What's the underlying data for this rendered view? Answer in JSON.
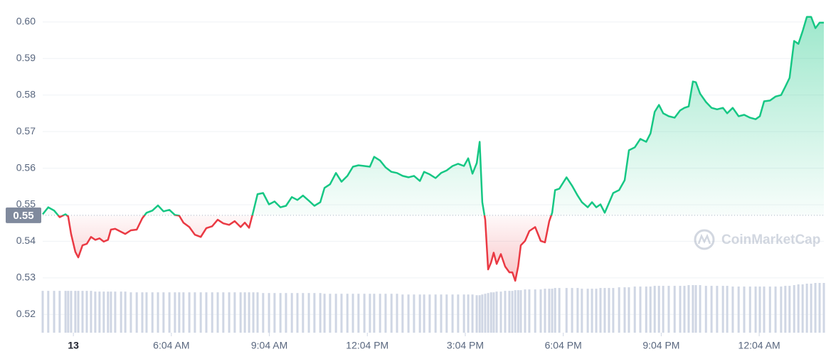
{
  "chart_data": {
    "type": "line",
    "watermark": "CoinMarketCap",
    "x": [
      2.06,
      2.23,
      2.41,
      2.58,
      2.76,
      2.84,
      2.93,
      3.06,
      3.15,
      3.28,
      3.41,
      3.54,
      3.67,
      3.8,
      3.93,
      4.06,
      4.15,
      4.28,
      4.46,
      4.59,
      4.76,
      4.94,
      5.11,
      5.24,
      5.42,
      5.59,
      5.76,
      5.94,
      6.11,
      6.24,
      6.37,
      6.55,
      6.72,
      6.9,
      7.07,
      7.25,
      7.42,
      7.59,
      7.77,
      7.94,
      8.12,
      8.25,
      8.38,
      8.51,
      8.64,
      8.81,
      8.99,
      9.16,
      9.34,
      9.51,
      9.69,
      9.86,
      10.03,
      10.21,
      10.38,
      10.56,
      10.69,
      10.86,
      11.04,
      11.21,
      11.39,
      11.56,
      11.73,
      11.91,
      12.08,
      12.21,
      12.39,
      12.56,
      12.74,
      12.91,
      13.08,
      13.26,
      13.43,
      13.61,
      13.74,
      13.91,
      14.09,
      14.26,
      14.43,
      14.61,
      14.78,
      14.96,
      15.09,
      15.22,
      15.35,
      15.44,
      15.52,
      15.61,
      15.7,
      15.79,
      15.87,
      15.96,
      16.09,
      16.22,
      16.35,
      16.44,
      16.53,
      16.62,
      16.7,
      16.83,
      16.96,
      17.14,
      17.31,
      17.44,
      17.57,
      17.66,
      17.75,
      17.88,
      18.1,
      18.27,
      18.44,
      18.57,
      18.75,
      18.88,
      19.01,
      19.14,
      19.27,
      19.4,
      19.53,
      19.71,
      19.88,
      20.01,
      20.19,
      20.36,
      20.54,
      20.67,
      20.8,
      20.93,
      21.06,
      21.23,
      21.41,
      21.58,
      21.71,
      21.84,
      21.97,
      22.06,
      22.19,
      22.37,
      22.54,
      22.71,
      22.89,
      23.02,
      23.19,
      23.37,
      23.54,
      23.72,
      23.89,
      24.02,
      24.15,
      24.33,
      24.5,
      24.67,
      24.8,
      24.93,
      25.07,
      25.2,
      25.33,
      25.46,
      25.59,
      25.72,
      25.85,
      25.98
    ],
    "series": [
      {
        "values": [
          0.5474,
          0.5493,
          0.5484,
          0.5466,
          0.5474,
          0.5468,
          0.542,
          0.5371,
          0.5356,
          0.5389,
          0.5393,
          0.5412,
          0.5404,
          0.5408,
          0.5399,
          0.5404,
          0.5432,
          0.5434,
          0.5426,
          0.542,
          0.543,
          0.5432,
          0.5463,
          0.5478,
          0.5484,
          0.5498,
          0.5482,
          0.5486,
          0.5472,
          0.547,
          0.5451,
          0.5439,
          0.5418,
          0.5412,
          0.5436,
          0.5441,
          0.5459,
          0.5449,
          0.5445,
          0.5455,
          0.5439,
          0.5451,
          0.5437,
          0.5482,
          0.5529,
          0.5532,
          0.5501,
          0.5509,
          0.5493,
          0.5497,
          0.5521,
          0.5513,
          0.5525,
          0.5511,
          0.5497,
          0.5507,
          0.5546,
          0.5556,
          0.5587,
          0.5563,
          0.5579,
          0.5604,
          0.5608,
          0.5606,
          0.5604,
          0.5631,
          0.5621,
          0.5602,
          0.559,
          0.5587,
          0.5579,
          0.5575,
          0.5579,
          0.5565,
          0.559,
          0.5583,
          0.5573,
          0.5587,
          0.5594,
          0.5606,
          0.5612,
          0.5606,
          0.5627,
          0.5585,
          0.5614,
          0.5672,
          0.5507,
          0.5459,
          0.5323,
          0.5342,
          0.5369,
          0.5338,
          0.5365,
          0.5331,
          0.5315,
          0.5315,
          0.5292,
          0.5331,
          0.5389,
          0.5401,
          0.5428,
          0.5439,
          0.5401,
          0.5397,
          0.5455,
          0.5478,
          0.554,
          0.5544,
          0.5575,
          0.5552,
          0.5525,
          0.5507,
          0.5493,
          0.5507,
          0.5493,
          0.5501,
          0.5478,
          0.5505,
          0.5532,
          0.554,
          0.5567,
          0.5649,
          0.5657,
          0.568,
          0.5672,
          0.5695,
          0.5754,
          0.5773,
          0.575,
          0.5742,
          0.5738,
          0.5758,
          0.5765,
          0.5769,
          0.5837,
          0.5835,
          0.5804,
          0.5781,
          0.5765,
          0.5761,
          0.5765,
          0.575,
          0.5765,
          0.5742,
          0.5746,
          0.5738,
          0.5734,
          0.5742,
          0.5783,
          0.5785,
          0.5796,
          0.58,
          0.5823,
          0.5847,
          0.5948,
          0.594,
          0.5975,
          0.6014,
          0.6014,
          0.5983,
          0.5998,
          0.5998
        ],
        "color_up": "#16c784",
        "color_down": "#ea3943"
      }
    ],
    "volume": {
      "color": "#cfd6e4",
      "values": [
        58,
        58,
        58,
        58,
        58,
        58,
        58,
        58,
        58,
        58,
        58,
        58,
        57,
        57,
        57,
        57,
        57,
        57,
        57,
        57,
        56,
        56,
        56,
        56,
        56,
        56,
        56,
        56,
        56,
        56,
        56,
        56,
        56,
        56,
        56,
        56,
        56,
        56,
        56,
        56,
        56,
        56,
        56,
        56,
        56,
        55,
        55,
        55,
        55,
        55,
        55,
        55,
        55,
        55,
        55,
        55,
        54,
        54,
        54,
        54,
        54,
        54,
        54,
        54,
        54,
        54,
        54,
        54,
        54,
        54,
        53,
        53,
        53,
        53,
        53,
        53,
        53,
        53,
        53,
        53,
        53,
        53,
        53,
        53,
        52,
        52,
        53,
        54,
        55,
        56,
        56,
        57,
        57,
        58,
        58,
        58,
        59,
        59,
        59,
        60,
        60,
        60,
        60,
        61,
        61,
        61,
        62,
        62,
        62,
        62,
        62,
        61,
        61,
        61,
        61,
        62,
        62,
        62,
        62,
        63,
        63,
        63,
        64,
        64,
        64,
        64,
        65,
        65,
        65,
        65,
        65,
        65,
        65,
        66,
        66,
        66,
        66,
        65,
        65,
        65,
        65,
        65,
        64,
        64,
        64,
        64,
        64,
        64,
        64,
        64,
        64,
        64,
        65,
        65,
        66,
        67,
        67,
        68,
        68,
        69,
        69,
        69
      ]
    },
    "baseline": {
      "value": 0.5471,
      "label": "0.55"
    },
    "xlim": [
      2.06,
      25.98
    ],
    "ylim": [
      0.515,
      0.606
    ],
    "xticks": [
      {
        "value": 3,
        "label": "13"
      },
      {
        "value": 6,
        "label": "6:04 AM"
      },
      {
        "value": 9,
        "label": "9:04 AM"
      },
      {
        "value": 12,
        "label": "12:04 PM"
      },
      {
        "value": 15,
        "label": "3:04 PM"
      },
      {
        "value": 18,
        "label": "6:04 PM"
      },
      {
        "value": 21,
        "label": "9:04 PM"
      },
      {
        "value": 24,
        "label": "12:04 AM"
      }
    ],
    "yticks": [
      {
        "value": 0.52,
        "label": "0.52"
      },
      {
        "value": 0.53,
        "label": "0.53"
      },
      {
        "value": 0.54,
        "label": "0.54"
      },
      {
        "value": 0.55,
        "label": "0.55"
      },
      {
        "value": 0.56,
        "label": "0.56"
      },
      {
        "value": 0.57,
        "label": "0.57"
      },
      {
        "value": 0.58,
        "label": "0.58"
      },
      {
        "value": 0.59,
        "label": "0.59"
      },
      {
        "value": 0.6,
        "label": "0.60"
      }
    ],
    "grid": true
  }
}
